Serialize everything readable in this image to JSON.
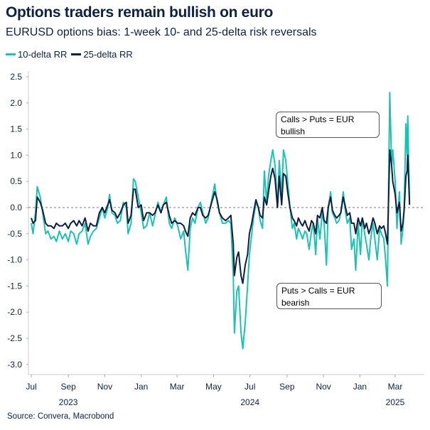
{
  "title": "Options traders remain bullish on euro",
  "subtitle": "EURUSD options bias: 1-week 10- and 25-delta risk reversals",
  "source": "Source: Convera, Macrobond",
  "colors": {
    "rr10": "#1cc2b2",
    "rr25": "#0b1f3f"
  },
  "annotations": {
    "bullish": "Calls > Puts = EUR bullish",
    "bearish": "Puts > Calls = EUR bearish"
  },
  "chart_data": {
    "type": "line",
    "title": "Options traders remain bullish on euro",
    "subtitle": "EURUSD options bias: 1-week 10- and 25-delta risk reversals",
    "legend_position": "top-left",
    "grid": false,
    "zero_line": "dashed",
    "ylim": [
      -3.0,
      2.5
    ],
    "yticks": [
      "2.5",
      "2.0",
      "1.5",
      "1.0",
      "0.5",
      "0.0",
      "-0.5",
      "-1.0",
      "-1.5",
      "-2.0",
      "-2.5",
      "-3.0"
    ],
    "xticks": [
      {
        "date": "2023-07-01",
        "label": "Jul"
      },
      {
        "date": "2023-09-01",
        "label": "Sep"
      },
      {
        "date": "2023-11-01",
        "label": "Nov"
      },
      {
        "date": "2024-01-01",
        "label": "Jan"
      },
      {
        "date": "2024-03-01",
        "label": "Mar"
      },
      {
        "date": "2024-05-01",
        "label": "May"
      },
      {
        "date": "2024-07-01",
        "label": "Jul"
      },
      {
        "date": "2024-09-01",
        "label": "Sep"
      },
      {
        "date": "2024-11-01",
        "label": "Nov"
      },
      {
        "date": "2025-01-01",
        "label": "Jan"
      },
      {
        "date": "2025-03-01",
        "label": "Mar"
      }
    ],
    "year_labels": [
      {
        "date": "2023-09-01",
        "label": "2023"
      },
      {
        "date": "2024-07-01",
        "label": "2024"
      },
      {
        "date": "2025-03-01",
        "label": "2025"
      }
    ],
    "x": [
      "2023-07-01",
      "2023-07-04",
      "2023-07-08",
      "2023-07-11",
      "2023-07-16",
      "2023-07-20",
      "2023-07-25",
      "2023-07-29",
      "2023-08-03",
      "2023-08-08",
      "2023-08-12",
      "2023-08-17",
      "2023-08-22",
      "2023-08-27",
      "2023-09-01",
      "2023-09-05",
      "2023-09-10",
      "2023-09-15",
      "2023-09-19",
      "2023-09-24",
      "2023-09-29",
      "2023-10-04",
      "2023-10-08",
      "2023-10-13",
      "2023-10-18",
      "2023-10-23",
      "2023-10-28",
      "2023-11-01",
      "2023-11-06",
      "2023-11-09",
      "2023-11-13",
      "2023-11-18",
      "2023-11-22",
      "2023-11-27",
      "2023-12-02",
      "2023-12-07",
      "2023-12-10",
      "2023-12-15",
      "2023-12-19",
      "2023-12-22",
      "2023-12-27",
      "2024-01-01",
      "2024-01-05",
      "2024-01-10",
      "2024-01-15",
      "2024-01-20",
      "2024-01-24",
      "2024-01-29",
      "2024-02-03",
      "2024-02-07",
      "2024-02-12",
      "2024-02-17",
      "2024-02-21",
      "2024-02-26",
      "2024-03-02",
      "2024-03-07",
      "2024-03-12",
      "2024-03-15",
      "2024-03-19",
      "2024-03-23",
      "2024-03-27",
      "2024-03-31",
      "2024-04-05",
      "2024-04-09",
      "2024-04-13",
      "2024-04-18",
      "2024-04-22",
      "2024-04-28",
      "2024-05-03",
      "2024-05-07",
      "2024-05-11",
      "2024-05-16",
      "2024-05-21",
      "2024-05-26",
      "2024-05-30",
      "2024-06-03",
      "2024-06-05",
      "2024-06-09",
      "2024-06-12",
      "2024-06-16",
      "2024-06-19",
      "2024-06-23",
      "2024-06-27",
      "2024-06-30",
      "2024-07-04",
      "2024-07-07",
      "2024-07-11",
      "2024-07-15",
      "2024-07-18",
      "2024-07-22",
      "2024-07-25",
      "2024-07-29",
      "2024-08-01",
      "2024-08-05",
      "2024-08-08",
      "2024-08-12",
      "2024-08-16",
      "2024-08-19",
      "2024-08-23",
      "2024-08-26",
      "2024-08-30",
      "2024-09-02",
      "2024-09-06",
      "2024-09-10",
      "2024-09-13",
      "2024-09-17",
      "2024-09-20",
      "2024-09-24",
      "2024-09-27",
      "2024-10-01",
      "2024-10-04",
      "2024-10-08",
      "2024-10-12",
      "2024-10-15",
      "2024-10-19",
      "2024-10-22",
      "2024-10-26",
      "2024-10-30",
      "2024-11-02",
      "2024-11-06",
      "2024-11-09",
      "2024-11-13",
      "2024-11-16",
      "2024-11-20",
      "2024-11-23",
      "2024-11-27",
      "2024-11-30",
      "2024-12-04",
      "2024-12-08",
      "2024-12-11",
      "2024-12-15",
      "2024-12-18",
      "2024-12-22",
      "2024-12-25",
      "2024-12-29",
      "2025-01-02",
      "2025-01-05",
      "2025-01-09",
      "2025-01-12",
      "2025-01-16",
      "2025-01-19",
      "2025-01-23",
      "2025-01-26",
      "2025-01-30",
      "2025-02-03",
      "2025-02-06",
      "2025-02-10",
      "2025-02-13",
      "2025-02-16",
      "2025-02-18",
      "2025-02-20",
      "2025-02-23",
      "2025-02-25",
      "2025-03-01",
      "2025-03-04",
      "2025-03-08",
      "2025-03-11",
      "2025-03-14",
      "2025-03-16",
      "2025-03-19",
      "2025-03-21",
      "2025-03-22",
      "2025-03-25"
    ],
    "series": [
      {
        "name": "10-delta RR",
        "values": [
          -0.3,
          -0.5,
          -0.1,
          0.4,
          0.2,
          -0.1,
          -0.5,
          -0.45,
          -0.6,
          -0.55,
          -0.65,
          -0.45,
          -0.6,
          -0.5,
          -0.65,
          -0.45,
          -0.5,
          -0.7,
          -0.5,
          -0.45,
          -0.3,
          -0.7,
          -0.55,
          -0.45,
          -0.4,
          -0.2,
          0.0,
          -0.2,
          0.0,
          0.25,
          -0.1,
          -0.15,
          -0.3,
          -0.25,
          0.1,
          0.0,
          -0.5,
          -0.3,
          0.55,
          0.5,
          0.2,
          -0.1,
          -0.4,
          -0.35,
          -0.1,
          -0.35,
          -0.15,
          0.1,
          -0.1,
          0.05,
          0.2,
          -0.3,
          -0.4,
          -0.2,
          -0.35,
          -0.6,
          -0.45,
          -0.8,
          -1.2,
          -0.4,
          -0.2,
          -0.3,
          0.0,
          0.1,
          -0.1,
          -0.3,
          -0.2,
          0.15,
          0.45,
          0.1,
          -0.1,
          -0.3,
          -0.3,
          -0.25,
          -0.3,
          -1.3,
          -2.4,
          -1.6,
          -1.5,
          -2.4,
          -2.7,
          -2.2,
          -1.5,
          -0.9,
          -0.5,
          -0.2,
          0.1,
          0.0,
          -0.25,
          -0.4,
          0.7,
          0.1,
          0.6,
          0.9,
          1.1,
          0.8,
          0.0,
          0.9,
          0.2,
          1.1,
          0.9,
          0.5,
          0.0,
          -0.4,
          -0.3,
          -0.6,
          -0.4,
          -0.5,
          -0.6,
          -0.45,
          -0.5,
          -0.8,
          -0.45,
          -0.3,
          -0.9,
          -0.2,
          -0.6,
          -0.1,
          -0.3,
          -1.1,
          0.0,
          0.3,
          -0.1,
          -0.2,
          -0.3,
          -0.25,
          -0.1,
          0.3,
          -0.1,
          -0.3,
          -0.2,
          -0.8,
          -0.6,
          -1.2,
          -0.3,
          -0.9,
          -0.2,
          -0.5,
          -0.7,
          -1.0,
          -0.6,
          -0.3,
          -0.6,
          -1.0,
          -0.4,
          -0.5,
          -0.6,
          -1.0,
          -1.5,
          0.5,
          2.2,
          0.8,
          1.1,
          0.5,
          -0.4,
          0.3,
          -0.7,
          -0.4,
          0.0,
          1.6,
          1.0,
          1.75,
          0.1
        ]
      },
      {
        "name": "25-delta RR",
        "values": [
          -0.2,
          -0.3,
          -0.25,
          0.2,
          0.1,
          -0.05,
          -0.3,
          -0.35,
          -0.35,
          -0.4,
          -0.3,
          -0.35,
          -0.35,
          -0.3,
          -0.4,
          -0.3,
          -0.25,
          -0.35,
          -0.25,
          -0.35,
          -0.2,
          -0.45,
          -0.3,
          -0.35,
          -0.35,
          -0.1,
          0.0,
          -0.1,
          0.05,
          0.15,
          -0.05,
          -0.1,
          -0.2,
          -0.1,
          0.05,
          0.1,
          -0.3,
          -0.15,
          0.35,
          0.35,
          0.0,
          0.05,
          -0.25,
          -0.1,
          -0.1,
          -0.15,
          -0.1,
          0.05,
          -0.1,
          0.05,
          0.1,
          -0.15,
          -0.3,
          -0.25,
          -0.3,
          -0.3,
          -0.35,
          -0.45,
          -0.55,
          -0.2,
          -0.1,
          -0.15,
          0.0,
          0.0,
          -0.15,
          -0.2,
          -0.15,
          0.1,
          0.3,
          0.15,
          -0.1,
          -0.2,
          -0.25,
          -0.2,
          -0.15,
          -0.7,
          -1.3,
          -0.95,
          -0.85,
          -1.3,
          -1.45,
          -1.1,
          -0.9,
          -0.5,
          -0.3,
          -0.1,
          0.15,
          0.0,
          -0.15,
          -0.2,
          0.2,
          0.05,
          0.3,
          0.6,
          0.75,
          0.55,
          0.0,
          0.6,
          0.05,
          0.65,
          0.6,
          0.3,
          0.0,
          -0.2,
          -0.25,
          -0.35,
          -0.2,
          -0.3,
          -0.35,
          -0.25,
          -0.35,
          -0.45,
          -0.25,
          -0.3,
          -0.5,
          -0.15,
          -0.2,
          0.0,
          -0.25,
          -0.3,
          0.0,
          0.2,
          -0.05,
          -0.15,
          -0.2,
          -0.15,
          -0.1,
          0.2,
          0.0,
          -0.15,
          -0.1,
          -0.3,
          -0.3,
          -0.5,
          -0.2,
          -0.35,
          -0.2,
          -0.4,
          -0.3,
          -0.5,
          -0.4,
          -0.2,
          -0.3,
          -0.5,
          -0.35,
          -0.4,
          -0.35,
          -0.5,
          -0.7,
          0.2,
          1.1,
          0.8,
          0.5,
          0.25,
          -0.1,
          0.1,
          -0.45,
          -0.3,
          -0.05,
          0.6,
          0.7,
          1.0,
          0.05
        ]
      }
    ]
  }
}
